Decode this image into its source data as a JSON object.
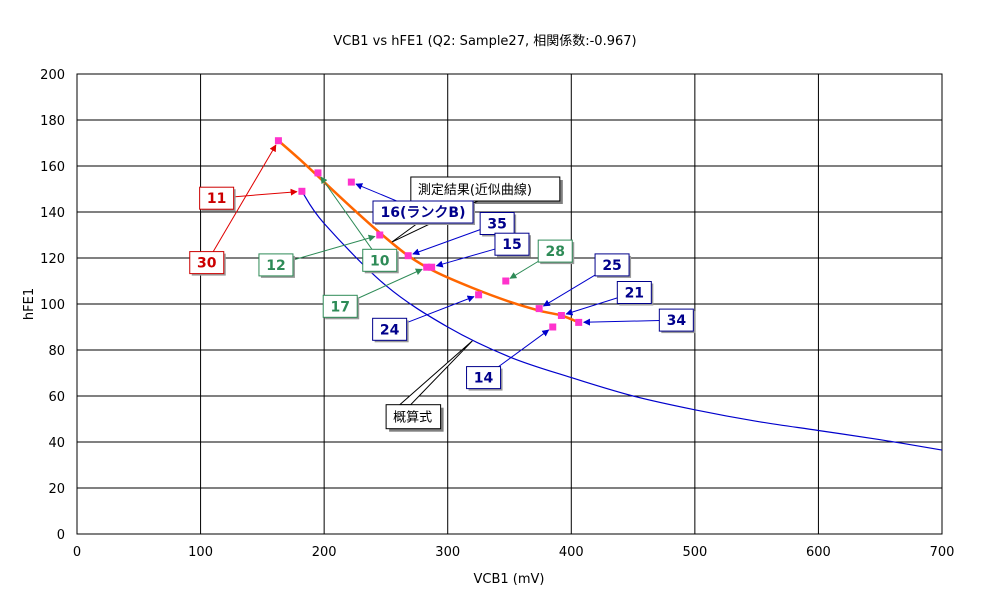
{
  "chart_data": {
    "type": "scatter",
    "title": "VCB1 vs hFE1 (Q2: Sample27, 相関係数:-0.967)",
    "xlabel": "VCB1 (mV)",
    "ylabel": "hFE1",
    "xlim": [
      0,
      700
    ],
    "ylim": [
      0,
      200
    ],
    "x_ticks": [
      "0",
      "100",
      "200",
      "300",
      "400",
      "500",
      "600",
      "700"
    ],
    "y_ticks": [
      "0",
      "20",
      "40",
      "60",
      "80",
      "100",
      "120",
      "140",
      "160",
      "180",
      "200"
    ],
    "grid": true,
    "points": [
      {
        "x": 163,
        "y": 171,
        "label": "30",
        "color": "#cc0000",
        "lx": 105,
        "ly": 118
      },
      {
        "x": 195,
        "y": 157,
        "label": "10",
        "color": "#2e8b57",
        "lx": 245,
        "ly": 119
      },
      {
        "x": 222,
        "y": 153,
        "label": "16(ランクB)",
        "color": "#00008b",
        "lx": 280,
        "ly": 140
      },
      {
        "x": 182,
        "y": 149,
        "label": "11",
        "color": "#cc0000",
        "lx": 113,
        "ly": 146
      },
      {
        "x": 245,
        "y": 130,
        "label": "12",
        "color": "#2e8b57",
        "lx": 161,
        "ly": 117
      },
      {
        "x": 268,
        "y": 121,
        "label": "35",
        "color": "#00008b",
        "lx": 340,
        "ly": 135
      },
      {
        "x": 287,
        "y": 116,
        "label": "15",
        "color": "#00008b",
        "lx": 352,
        "ly": 126
      },
      {
        "x": 283,
        "y": 116,
        "label": "17",
        "color": "#2e8b57",
        "lx": 213,
        "ly": 99
      },
      {
        "x": 325,
        "y": 104,
        "label": "24",
        "color": "#00008b",
        "lx": 253,
        "ly": 89
      },
      {
        "x": 347,
        "y": 110,
        "label": "28",
        "color": "#2e8b57",
        "lx": 387,
        "ly": 123
      },
      {
        "x": 374,
        "y": 98,
        "label": "25",
        "color": "#00008b",
        "lx": 433,
        "ly": 117
      },
      {
        "x": 392,
        "y": 95,
        "label": "21",
        "color": "#00008b",
        "lx": 451,
        "ly": 105
      },
      {
        "x": 406,
        "y": 92,
        "label": "34",
        "color": "#00008b",
        "lx": 485,
        "ly": 93
      },
      {
        "x": 385,
        "y": 90,
        "label": "14",
        "color": "#00008b",
        "lx": 329,
        "ly": 68
      }
    ],
    "series": [
      {
        "name": "測定結果(近似曲線)",
        "color": "#ff6600",
        "x": [
          163,
          180,
          200,
          220,
          245,
          268,
          290,
          320,
          350,
          375,
          392,
          406
        ],
        "y": [
          171,
          163,
          153,
          143,
          131,
          121,
          114,
          107,
          101,
          97,
          95,
          92
        ]
      },
      {
        "name": "概算式",
        "color": "#0000cc",
        "x": [
          182,
          200,
          250,
          300,
          350,
          400,
          450,
          500,
          550,
          600,
          650,
          700
        ],
        "y": [
          149,
          135,
          108,
          90,
          77,
          68,
          60,
          54,
          49,
          45,
          41,
          36.5
        ]
      }
    ],
    "annotations": [
      {
        "text": "測定結果(近似曲線)",
        "anchor_x": 255,
        "anchor_y": 127,
        "lx": 275,
        "ly": 150
      },
      {
        "text": "概算式",
        "anchor_x": 320,
        "anchor_y": 84,
        "lx": 255,
        "ly": 51
      }
    ]
  }
}
